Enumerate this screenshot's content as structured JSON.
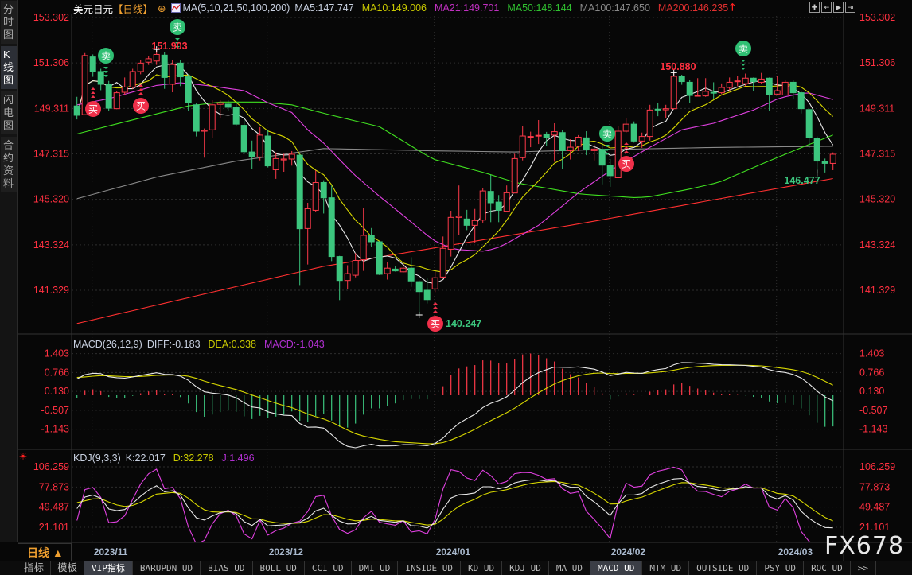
{
  "sidebar": {
    "items": [
      {
        "label": "分时图",
        "selected": false
      },
      {
        "label": "K线图",
        "selected": true
      },
      {
        "label": "闪电图",
        "selected": false
      },
      {
        "label": "合约资料",
        "selected": false
      }
    ]
  },
  "header": {
    "symbol": "美元日元",
    "period": "【日线】",
    "ma_params": "MA(5,10,21,50,100,200)",
    "ma5": "MA5:147.747",
    "ma10": "MA10:149.006",
    "ma21": "MA21:149.701",
    "ma50": "MA50:148.144",
    "ma100": "MA100:147.650",
    "ma200": "MA200:146.235",
    "icons": [
      "crosshair-target-icon",
      "indicator-chart-icon",
      "up-arrow-icon"
    ]
  },
  "toolbar": {
    "icons": [
      "crosshair-icon",
      "zoom-start-icon",
      "play-icon",
      "go-end-icon"
    ]
  },
  "colors": {
    "up": "#ff3a4a",
    "down": "#3cc67e",
    "ma5": "#e8e8e8",
    "ma10": "#d8d800",
    "ma21": "#e040e0",
    "ma50": "#40e020",
    "ma100": "#8a8a8a",
    "ma200": "#ff3030",
    "axis": "#ff3040"
  },
  "macd": {
    "title": "MACD(26,12,9)",
    "diff": "DIFF:-0.183",
    "dea": "DEA:0.338",
    "macd": "MACD:-1.043"
  },
  "kdj": {
    "title": "KDJ(9,3,3)",
    "k": "K:22.017",
    "d": "D:32.278",
    "j": "J:1.496"
  },
  "period_button": "日线 ▲",
  "tabs": [
    {
      "label": "指标",
      "cn": true
    },
    {
      "label": "模板",
      "cn": true
    },
    {
      "label": "VIP指标",
      "selected": true
    },
    {
      "label": "BARUPDN_UD"
    },
    {
      "label": "BIAS_UD"
    },
    {
      "label": "BOLL_UD"
    },
    {
      "label": "CCI_UD"
    },
    {
      "label": "DMI_UD"
    },
    {
      "label": "INSIDE_UD"
    },
    {
      "label": "KD_UD"
    },
    {
      "label": "KDJ_UD"
    },
    {
      "label": "MA_UD"
    },
    {
      "label": "MACD_UD",
      "selected": true
    },
    {
      "label": "MTM_UD"
    },
    {
      "label": "OUTSIDE_UD"
    },
    {
      "label": "PSY_UD"
    },
    {
      "label": "ROC_UD"
    },
    {
      "label": ">>"
    }
  ],
  "watermark": "FX678",
  "chart_data": {
    "type": "candlestick",
    "price_ticks": [
      "153.302",
      "151.306",
      "149.311",
      "147.315",
      "145.320",
      "143.324",
      "141.329"
    ],
    "price_range": [
      153.302,
      141.329
    ],
    "macd_ticks": [
      "1.403",
      "0.766",
      "0.130",
      "-0.507",
      "-1.143"
    ],
    "kdj_ticks": [
      "106.259",
      "77.873",
      "49.487",
      "21.101"
    ],
    "x_labels": [
      {
        "label": "2023/11",
        "candle": 2
      },
      {
        "label": "2023/12",
        "candle": 24
      },
      {
        "label": "2024/01",
        "candle": 45
      },
      {
        "label": "2024/02",
        "candle": 67
      },
      {
        "label": "2024/03",
        "candle": 88
      }
    ],
    "annotations": [
      {
        "text": "151.903",
        "candle": 10,
        "kind": "high"
      },
      {
        "text": "150.880",
        "candle": 75,
        "kind": "high"
      },
      {
        "text": "146.477",
        "candle": 93,
        "kind": "low"
      },
      {
        "text": "140.247",
        "candle": 43,
        "kind": "low"
      }
    ],
    "signals": [
      {
        "type": "sell",
        "label": "卖"
      },
      {
        "type": "sell",
        "label": "卖"
      },
      {
        "type": "sell",
        "label": "卖"
      },
      {
        "type": "sell",
        "label": "卖"
      },
      {
        "type": "buy",
        "label": "买"
      },
      {
        "type": "buy",
        "label": "买"
      },
      {
        "type": "buy",
        "label": "买"
      },
      {
        "type": "buy",
        "label": "买"
      }
    ],
    "ohlc": [
      [
        149.42,
        149.82,
        148.83,
        149.01
      ],
      [
        149.04,
        151.74,
        149.01,
        151.63
      ],
      [
        151.57,
        151.68,
        150.7,
        150.93
      ],
      [
        150.93,
        151.05,
        150.11,
        150.37
      ],
      [
        150.37,
        150.52,
        149.21,
        149.32
      ],
      [
        149.3,
        150.06,
        149.28,
        150.0
      ],
      [
        150.02,
        150.67,
        149.9,
        150.25
      ],
      [
        150.25,
        151.05,
        150.17,
        150.93
      ],
      [
        150.93,
        151.42,
        150.81,
        151.3
      ],
      [
        151.34,
        151.6,
        151.22,
        151.49
      ],
      [
        151.39,
        151.903,
        151.22,
        151.68
      ],
      [
        151.65,
        151.8,
        150.17,
        150.67
      ],
      [
        150.37,
        151.42,
        150.02,
        151.24
      ],
      [
        151.3,
        151.42,
        150.29,
        150.7
      ],
      [
        150.7,
        150.81,
        149.21,
        149.56
      ],
      [
        149.47,
        149.53,
        148.08,
        148.31
      ],
      [
        148.31,
        148.43,
        147.15,
        148.35
      ],
      [
        148.37,
        149.67,
        148.0,
        149.47
      ],
      [
        149.49,
        149.67,
        148.89,
        149.56
      ],
      [
        149.5,
        149.67,
        149.21,
        149.36
      ],
      [
        149.36,
        149.65,
        148.54,
        148.62
      ],
      [
        148.57,
        148.81,
        147.3,
        147.41
      ],
      [
        147.4,
        147.9,
        146.65,
        147.18
      ],
      [
        147.18,
        148.49,
        147.03,
        148.14
      ],
      [
        148.1,
        148.35,
        146.72,
        146.79
      ],
      [
        146.62,
        147.38,
        146.22,
        147.11
      ],
      [
        147.05,
        147.32,
        146.53,
        147.09
      ],
      [
        147.09,
        147.44,
        146.8,
        147.3
      ],
      [
        147.26,
        147.32,
        141.56,
        144.03
      ],
      [
        144.04,
        145.17,
        142.46,
        144.91
      ],
      [
        144.84,
        146.59,
        144.76,
        146.06
      ],
      [
        146.06,
        146.16,
        144.7,
        145.39
      ],
      [
        145.39,
        145.92,
        142.61,
        142.81
      ],
      [
        142.81,
        142.84,
        140.9,
        141.76
      ],
      [
        141.76,
        142.43,
        141.39,
        142.06
      ],
      [
        141.99,
        142.96,
        141.9,
        142.64
      ],
      [
        142.67,
        144.94,
        142.18,
        143.74
      ],
      [
        143.74,
        144.06,
        143.25,
        143.46
      ],
      [
        143.46,
        143.48,
        142.0,
        142.03
      ],
      [
        142.06,
        142.57,
        141.8,
        142.3
      ],
      [
        142.26,
        142.38,
        142.15,
        142.18
      ],
      [
        142.14,
        142.49,
        142.11,
        142.3
      ],
      [
        142.3,
        142.78,
        141.48,
        141.74
      ],
      [
        141.71,
        141.76,
        140.247,
        141.27
      ],
      [
        141.33,
        141.85,
        140.75,
        140.92
      ],
      [
        141.39,
        142.14,
        141.25,
        141.88
      ],
      [
        141.91,
        143.69,
        141.85,
        143.17
      ],
      [
        143.13,
        144.82,
        142.81,
        144.53
      ],
      [
        144.53,
        145.93,
        143.77,
        144.58
      ],
      [
        144.46,
        144.86,
        143.97,
        144.18
      ],
      [
        144.18,
        144.9,
        143.42,
        144.39
      ],
      [
        144.41,
        145.81,
        144.3,
        145.69
      ],
      [
        145.67,
        146.39,
        144.32,
        145.17
      ],
      [
        145.2,
        145.51,
        144.32,
        144.84
      ],
      [
        144.8,
        145.93,
        144.8,
        145.61
      ],
      [
        145.6,
        147.32,
        145.6,
        147.11
      ],
      [
        147.15,
        148.54,
        147.03,
        148.1
      ],
      [
        148.07,
        148.29,
        147.61,
        148.08
      ],
      [
        148.1,
        148.8,
        147.75,
        148.13
      ],
      [
        148.19,
        148.28,
        147.67,
        148.04
      ],
      [
        148.14,
        148.66,
        146.97,
        148.29
      ],
      [
        148.25,
        148.35,
        146.65,
        147.46
      ],
      [
        147.46,
        147.96,
        147.07,
        147.61
      ],
      [
        147.65,
        148.14,
        147.44,
        148.05
      ],
      [
        148.02,
        148.31,
        147.26,
        147.5
      ],
      [
        147.46,
        147.73,
        147.03,
        147.53
      ],
      [
        147.52,
        147.85,
        145.98,
        146.82
      ],
      [
        146.82,
        147.09,
        145.87,
        146.36
      ],
      [
        146.27,
        148.54,
        146.25,
        148.31
      ],
      [
        148.31,
        148.89,
        148.25,
        148.62
      ],
      [
        148.62,
        148.74,
        147.81,
        147.88
      ],
      [
        147.88,
        148.25,
        147.58,
        148.08
      ],
      [
        148.08,
        149.47,
        147.9,
        149.24
      ],
      [
        149.28,
        149.56,
        148.97,
        149.24
      ],
      [
        149.25,
        149.47,
        148.89,
        149.3
      ],
      [
        149.3,
        150.88,
        149.28,
        150.72
      ],
      [
        150.72,
        150.79,
        150.35,
        150.49
      ],
      [
        150.46,
        150.58,
        149.56,
        149.88
      ],
      [
        149.86,
        150.64,
        149.86,
        149.88
      ],
      [
        149.86,
        150.64,
        149.82,
        150.06
      ],
      [
        150.02,
        150.46,
        149.71,
        149.98
      ],
      [
        150.0,
        150.41,
        149.94,
        150.23
      ],
      [
        150.23,
        150.67,
        150.06,
        150.46
      ],
      [
        150.5,
        150.72,
        150.29,
        150.52
      ],
      [
        150.4,
        150.84,
        150.29,
        150.64
      ],
      [
        150.64,
        150.67,
        150.06,
        150.49
      ],
      [
        150.46,
        150.87,
        150.37,
        150.6
      ],
      [
        150.64,
        150.67,
        149.21,
        149.9
      ],
      [
        149.94,
        150.72,
        149.9,
        150.09
      ],
      [
        149.9,
        150.56,
        149.9,
        150.46
      ],
      [
        150.46,
        150.56,
        149.71,
        150.0
      ],
      [
        150.0,
        150.09,
        149.09,
        149.3
      ],
      [
        149.26,
        149.3,
        147.58,
        148.02
      ],
      [
        148.0,
        148.08,
        146.477,
        147.0
      ],
      [
        146.99,
        147.11,
        146.5,
        146.9
      ],
      [
        146.9,
        147.38,
        146.6,
        147.3
      ]
    ],
    "ma21_points": [
      [
        0,
        149.47
      ],
      [
        4,
        149.74
      ],
      [
        10,
        150.32
      ],
      [
        13,
        150.44
      ],
      [
        17,
        150.29
      ],
      [
        21,
        150.09
      ],
      [
        24,
        149.56
      ],
      [
        27,
        149.13
      ],
      [
        29,
        148.37
      ],
      [
        31,
        147.79
      ],
      [
        34.7,
        146.45
      ],
      [
        38,
        145.46
      ],
      [
        41.3,
        144.53
      ],
      [
        44.7,
        143.54
      ],
      [
        47.3,
        143.13
      ],
      [
        51.3,
        143.04
      ],
      [
        53.3,
        143.25
      ],
      [
        58,
        144.18
      ],
      [
        63.3,
        145.69
      ],
      [
        67.7,
        146.74
      ],
      [
        71.7,
        147.55
      ],
      [
        76,
        148.37
      ],
      [
        80,
        148.66
      ],
      [
        85,
        149.24
      ],
      [
        88.3,
        149.77
      ],
      [
        91.7,
        150.02
      ],
      [
        95,
        149.701
      ]
    ],
    "ma50_points": [
      [
        0,
        148.19
      ],
      [
        6,
        148.72
      ],
      [
        14,
        149.42
      ],
      [
        18,
        149.59
      ],
      [
        23,
        149.59
      ],
      [
        27,
        149.47
      ],
      [
        31.3,
        149.07
      ],
      [
        38,
        148.51
      ],
      [
        44.7,
        147.09
      ],
      [
        51,
        146.51
      ],
      [
        55.3,
        146.04
      ],
      [
        63.3,
        145.55
      ],
      [
        70,
        145.4
      ],
      [
        71.7,
        145.42
      ],
      [
        76.7,
        145.75
      ],
      [
        80.7,
        146.07
      ],
      [
        86.7,
        146.97
      ],
      [
        92,
        147.73
      ],
      [
        95,
        148.144
      ]
    ],
    "ma100_points": [
      [
        0,
        145.35
      ],
      [
        10,
        146.3
      ],
      [
        20,
        147.0
      ],
      [
        31,
        147.55
      ],
      [
        45,
        147.45
      ],
      [
        55,
        147.4
      ],
      [
        63,
        147.48
      ],
      [
        80,
        147.6
      ],
      [
        95,
        147.65
      ]
    ],
    "ma200_points": [
      [
        0,
        139.87
      ],
      [
        31,
        142.38
      ],
      [
        63,
        144.24
      ],
      [
        95,
        146.235
      ]
    ]
  }
}
